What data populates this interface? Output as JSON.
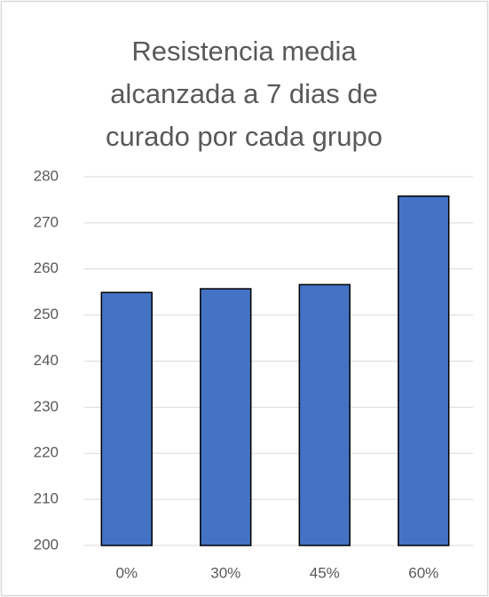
{
  "chart_data": {
    "type": "bar",
    "title": "Resistencia media alcanzada a 7 dias de curado por cada grupo",
    "categories": [
      "0%",
      "30%",
      "45%",
      "60%"
    ],
    "values": [
      254.9,
      255.7,
      256.6,
      275.8
    ],
    "color": "#4472c4",
    "ylim": [
      200,
      280
    ],
    "yticks": [
      200,
      210,
      220,
      230,
      240,
      250,
      260,
      270,
      280
    ],
    "grid": true
  }
}
